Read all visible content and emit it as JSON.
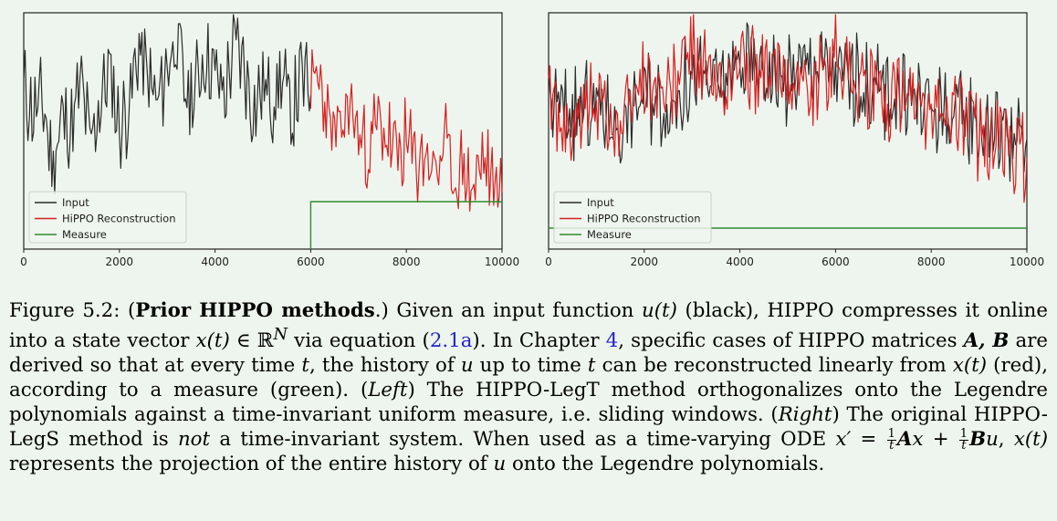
{
  "chart_data": [
    {
      "type": "line",
      "panel": "left",
      "xlim": [
        0,
        10000
      ],
      "xticks": [
        "0",
        "2000",
        "4000",
        "6000",
        "8000",
        "10000"
      ],
      "legend": {
        "placement": "lower-left",
        "entries": [
          "Input",
          "HiPPO Reconstruction",
          "Measure"
        ]
      },
      "series": [
        {
          "name": "Input",
          "color": "#2b2b2b",
          "x_range": [
            0,
            6000
          ],
          "values": [
            0.67,
            0.57,
            0.62,
            0.33,
            0.55,
            0.5,
            0.7,
            0.42,
            0.62,
            0.76,
            0.5,
            0.6,
            0.85,
            0.72,
            0.6,
            0.78,
            0.9,
            0.62,
            0.68,
            0.83,
            0.74,
            0.64,
            0.88,
            0.78,
            0.58,
            0.69,
            0.62,
            0.73,
            0.55,
            0.72,
            0.66
          ]
        },
        {
          "name": "HiPPO Reconstruction",
          "color": "#d62020",
          "x_range": [
            6000,
            10000
          ],
          "values": [
            0.67,
            0.71,
            0.5,
            0.44,
            0.62,
            0.47,
            0.4,
            0.52,
            0.46,
            0.36,
            0.43,
            0.35,
            0.4,
            0.3,
            0.42,
            0.28,
            0.33,
            0.22,
            0.38,
            0.24,
            0.3
          ]
        },
        {
          "name": "Measure",
          "color": "#2e8b2e",
          "type": "step",
          "x": [
            6000,
            6000,
            10000
          ],
          "values": [
            0.0,
            1.0,
            1.0
          ]
        }
      ]
    },
    {
      "type": "line",
      "panel": "right",
      "xlim": [
        0,
        10000
      ],
      "xticks": [
        "0",
        "2000",
        "4000",
        "6000",
        "8000",
        "10000"
      ],
      "legend": {
        "placement": "lower-left",
        "entries": [
          "Input",
          "HiPPO Reconstruction",
          "Measure"
        ]
      },
      "series": [
        {
          "name": "Input",
          "color": "#2b2b2b",
          "x_range": [
            0,
            10000
          ],
          "values": [
            0.62,
            0.56,
            0.6,
            0.5,
            0.66,
            0.6,
            0.72,
            0.68,
            0.78,
            0.75,
            0.7,
            0.8,
            0.74,
            0.7,
            0.66,
            0.64,
            0.6,
            0.55,
            0.52,
            0.5,
            0.4
          ]
        },
        {
          "name": "HiPPO Reconstruction",
          "color": "#d62020",
          "x_range": [
            0,
            10000
          ],
          "values": [
            0.64,
            0.46,
            0.66,
            0.48,
            0.74,
            0.62,
            0.86,
            0.64,
            0.8,
            0.72,
            0.76,
            0.66,
            0.84,
            0.7,
            0.62,
            0.68,
            0.54,
            0.6,
            0.46,
            0.44,
            0.36
          ]
        },
        {
          "name": "Measure",
          "color": "#2e8b2e",
          "type": "flat",
          "x": [
            0,
            10000
          ],
          "values": [
            0.08,
            0.08
          ]
        }
      ]
    }
  ],
  "caption": {
    "label": "Figure 5.2: (",
    "title": "Prior HIPPO methods",
    "after_title": ".) Given an input function ",
    "u_t": "u(t)",
    "t1": " (black), HIPPO compresses it online into a state vector ",
    "x_t": "x(t)",
    "in_rn": " ∈ ℝ",
    "sup_n": "N",
    "t2": " via equation (",
    "ref_eq": "2.1a",
    "t3": "). In Chapter ",
    "ref_ch": "4",
    "t4": ", specific cases of HIPPO matrices ",
    "ab": "A, B",
    "t5": " are derived so that at every time ",
    "t_var": "t",
    "t6": ", the history of ",
    "u_var": "u",
    "t7": " up to time ",
    "t_var2": "t",
    "t8": " can be reconstructed linearly from ",
    "x_t2": "x(t)",
    "t9": " (red), according to a measure (green). (",
    "left": "Left",
    "t10": ") The HIPPO-LegT method orthogonalizes onto the Legendre polynomials against a time-invariant uniform measure, i.e. sliding windows. (",
    "right": "Right",
    "t11": ") The original HIPPO-LegS method is ",
    "not": "not",
    "t12": " a time-invariant system. When used as a time-varying ODE ",
    "ode_lhs": "x′ = ",
    "frac_num": "1",
    "frac_den": "t",
    "ode_A": "A",
    "ode_x": "x + ",
    "ode_B": "B",
    "ode_u": "u",
    "t13": ", ",
    "x_t3": "x(t)",
    "t14": " represents the projection of the entire history of ",
    "u_var2": "u",
    "t15": " onto the Legendre polynomials."
  }
}
